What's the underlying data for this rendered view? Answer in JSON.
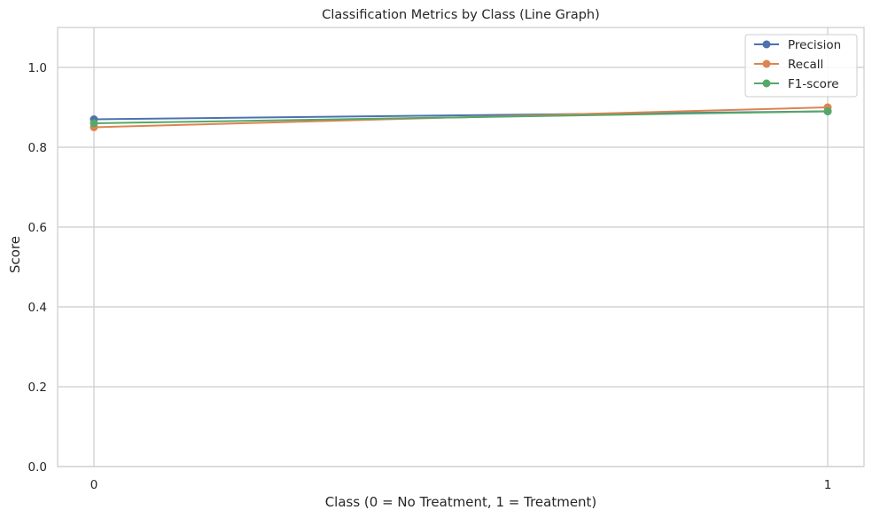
{
  "chart_data": {
    "type": "line",
    "title": "Classification Metrics by Class (Line Graph)",
    "xlabel": "Class (0 = No Treatment, 1 = Treatment)",
    "ylabel": "Score",
    "x": [
      0,
      1
    ],
    "x_tick_labels": [
      "0",
      "1"
    ],
    "ylim": [
      0,
      1.1
    ],
    "y_ticks": [
      0.0,
      0.2,
      0.4,
      0.6,
      0.8,
      1.0
    ],
    "y_tick_labels": [
      "0.0",
      "0.2",
      "0.4",
      "0.6",
      "0.8",
      "1.0"
    ],
    "grid": true,
    "legend_position": "top-right",
    "series": [
      {
        "name": "Precision",
        "values": [
          0.87,
          0.89
        ],
        "color": "#4c72b0"
      },
      {
        "name": "Recall",
        "values": [
          0.85,
          0.9
        ],
        "color": "#dd8452"
      },
      {
        "name": "F1-score",
        "values": [
          0.86,
          0.89
        ],
        "color": "#55a868"
      }
    ]
  }
}
